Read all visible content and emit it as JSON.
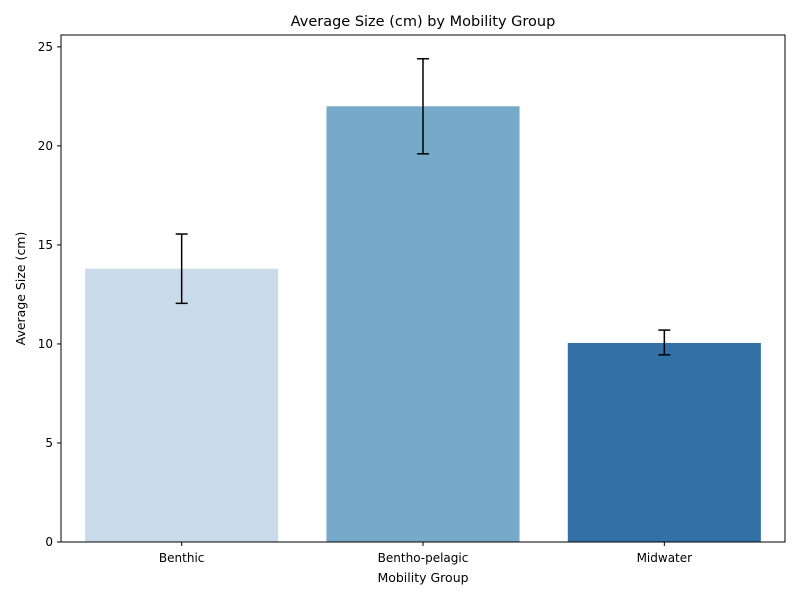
{
  "chart_data": {
    "type": "bar",
    "title": "Average Size (cm) by Mobility Group",
    "xlabel": "Mobility Group",
    "ylabel": "Average Size (cm)",
    "categories": [
      "Benthic",
      "Bentho-pelagic",
      "Midwater"
    ],
    "values": [
      13.8,
      22.0,
      10.05
    ],
    "error_low": [
      12.05,
      19.6,
      9.45
    ],
    "error_high": [
      15.55,
      24.4,
      10.7
    ],
    "colors": [
      "#c9dbea",
      "#77a9c9",
      "#3370a6"
    ],
    "ylim": [
      0,
      25.6
    ],
    "yticks": [
      0,
      5,
      10,
      15,
      20,
      25
    ],
    "grid": false,
    "legend": "none"
  }
}
